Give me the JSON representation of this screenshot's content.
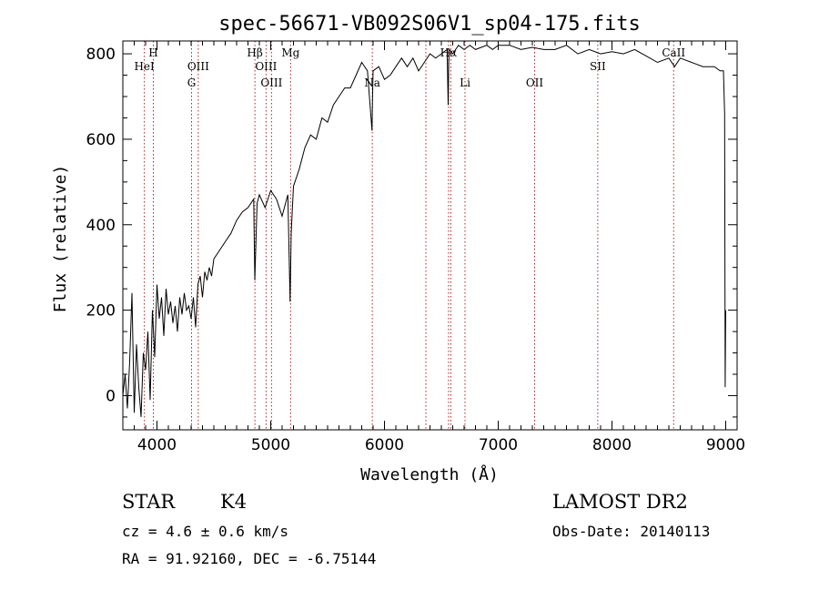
{
  "chart_data": {
    "type": "line",
    "title": "spec-56671-VB092S06V1_sp04-175.fits",
    "xlabel": "Wavelength (Å)",
    "ylabel": "Flux (relative)",
    "xlim": [
      3700,
      9100
    ],
    "ylim": [
      -80,
      830
    ],
    "x_ticks": [
      4000,
      5000,
      6000,
      7000,
      8000,
      9000
    ],
    "y_ticks": [
      0,
      200,
      400,
      600,
      800
    ],
    "grid": false,
    "line_color": "#000000",
    "marker_color": "#b22222",
    "series": [
      {
        "x": [
          3700,
          3720,
          3740,
          3760,
          3780,
          3800,
          3820,
          3840,
          3860,
          3880,
          3900,
          3920,
          3940,
          3960,
          3980,
          4000,
          4020,
          4040,
          4060,
          4080,
          4100,
          4120,
          4140,
          4160,
          4180,
          4200,
          4220,
          4240,
          4260,
          4280,
          4300,
          4320,
          4340,
          4360,
          4380,
          4400,
          4420,
          4440,
          4460,
          4480,
          4500,
          4550,
          4600,
          4650,
          4700,
          4750,
          4800,
          4850,
          4860,
          4880,
          4900,
          4950,
          5000,
          5050,
          5100,
          5150,
          5170,
          5180,
          5200,
          5250,
          5300,
          5350,
          5400,
          5450,
          5500,
          5550,
          5600,
          5650,
          5700,
          5750,
          5800,
          5850,
          5890,
          5895,
          5900,
          5950,
          6000,
          6050,
          6100,
          6150,
          6200,
          6250,
          6300,
          6350,
          6400,
          6450,
          6500,
          6550,
          6560,
          6565,
          6570,
          6600,
          6650,
          6700,
          6750,
          6800,
          6850,
          6900,
          6950,
          7000,
          7100,
          7200,
          7300,
          7400,
          7500,
          7600,
          7700,
          7800,
          7900,
          8000,
          8100,
          8200,
          8300,
          8400,
          8500,
          8550,
          8600,
          8700,
          8800,
          8900,
          8950,
          8980,
          8990,
          8995,
          9000
        ],
        "y": [
          0,
          50,
          -30,
          80,
          240,
          -40,
          120,
          20,
          -50,
          100,
          60,
          150,
          -10,
          200,
          90,
          260,
          180,
          230,
          140,
          250,
          190,
          220,
          170,
          210,
          150,
          230,
          190,
          240,
          200,
          210,
          180,
          230,
          160,
          260,
          280,
          230,
          290,
          270,
          300,
          280,
          320,
          340,
          360,
          380,
          410,
          430,
          440,
          460,
          270,
          450,
          470,
          440,
          480,
          460,
          420,
          470,
          220,
          380,
          490,
          530,
          580,
          610,
          600,
          650,
          640,
          680,
          700,
          720,
          720,
          750,
          780,
          760,
          620,
          700,
          760,
          770,
          740,
          750,
          770,
          790,
          770,
          790,
          760,
          780,
          800,
          790,
          800,
          810,
          680,
          780,
          810,
          800,
          820,
          810,
          820,
          810,
          815,
          820,
          810,
          820,
          820,
          810,
          815,
          810,
          810,
          820,
          800,
          810,
          800,
          805,
          800,
          810,
          795,
          780,
          790,
          770,
          790,
          780,
          770,
          770,
          760,
          760,
          660,
          20,
          200
        ]
      }
    ],
    "line_markers": [
      {
        "name": "HeI",
        "wavelength": 3889
      },
      {
        "name": "H",
        "wavelength": 3968
      },
      {
        "name": "G",
        "wavelength": 4304
      },
      {
        "name": "OIII",
        "wavelength": 4363
      },
      {
        "name": "Hβ",
        "wavelength": 4861
      },
      {
        "name": "OIII",
        "wavelength": 4959
      },
      {
        "name": "OIII",
        "wavelength": 5007
      },
      {
        "name": "Mg",
        "wavelength": 5175
      },
      {
        "name": "Na",
        "wavelength": 5893
      },
      {
        "name": "",
        "wavelength": 6364
      },
      {
        "name": "Hα",
        "wavelength": 6563
      },
      {
        "name": "",
        "wavelength": 6583
      },
      {
        "name": "Li",
        "wavelength": 6708
      },
      {
        "name": "OII",
        "wavelength": 7320
      },
      {
        "name": "SII",
        "wavelength": 7875
      },
      {
        "name": "CaII",
        "wavelength": 8542
      }
    ]
  },
  "info": {
    "object_class": "STAR",
    "subclass": "K4",
    "survey": "LAMOST DR2",
    "cz": "cz = 4.6 ± 0.6 km/s",
    "obs_date": "Obs-Date: 20140113",
    "radec": "RA =  91.92160, DEC =  -6.75144"
  }
}
